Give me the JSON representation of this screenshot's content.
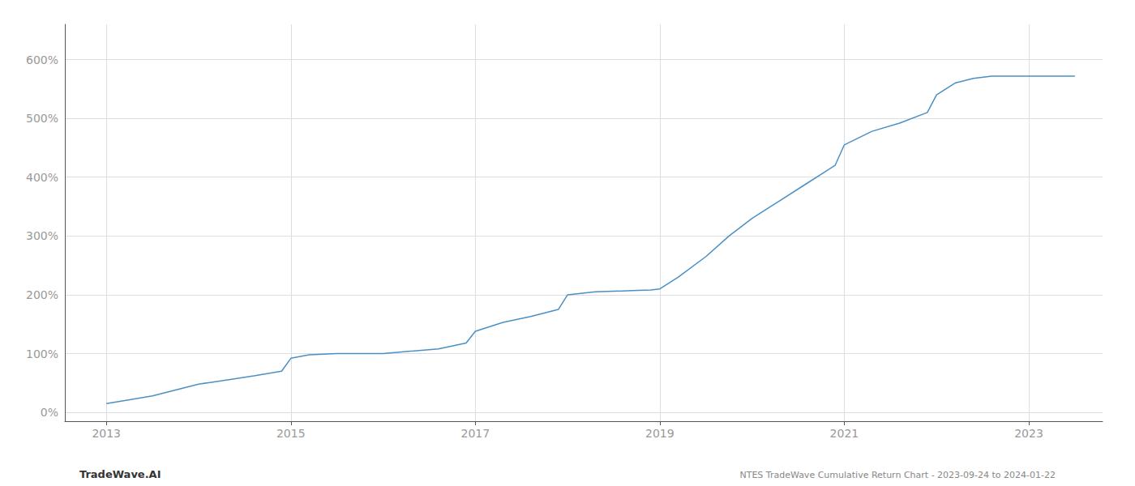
{
  "chart_data": {
    "type": "line",
    "x": [
      2013.0,
      2013.2,
      2013.5,
      2013.75,
      2014.0,
      2014.3,
      2014.6,
      2014.9,
      2015.0,
      2015.2,
      2015.5,
      2015.75,
      2016.0,
      2016.3,
      2016.6,
      2016.9,
      2017.0,
      2017.3,
      2017.6,
      2017.9,
      2018.0,
      2018.3,
      2018.5,
      2018.7,
      2018.9,
      2019.0,
      2019.2,
      2019.5,
      2019.75,
      2020.0,
      2020.3,
      2020.6,
      2020.9,
      2021.0,
      2021.3,
      2021.6,
      2021.9,
      2022.0,
      2022.2,
      2022.4,
      2022.6,
      2022.7,
      2023.0,
      2023.5
    ],
    "values": [
      15,
      20,
      28,
      38,
      48,
      55,
      62,
      70,
      92,
      98,
      100,
      100,
      100,
      104,
      108,
      118,
      138,
      153,
      163,
      175,
      200,
      205,
      206,
      207,
      208,
      210,
      230,
      265,
      300,
      330,
      360,
      390,
      420,
      455,
      478,
      492,
      510,
      540,
      560,
      568,
      572,
      572,
      572,
      572
    ],
    "color": "#4a90c4",
    "xlim": [
      2012.55,
      2023.8
    ],
    "xticks": [
      2013,
      2015,
      2017,
      2019,
      2021,
      2023
    ],
    "ylim": [
      -15,
      660
    ],
    "yticks": [
      {
        "value": 0,
        "label": "0%"
      },
      {
        "value": 100,
        "label": "100%"
      },
      {
        "value": 200,
        "label": "200%"
      },
      {
        "value": 300,
        "label": "300%"
      },
      {
        "value": 400,
        "label": "400%"
      },
      {
        "value": 500,
        "label": "500%"
      },
      {
        "value": 600,
        "label": "600%"
      }
    ],
    "grid": true,
    "annotations": [
      "TradeWave.AI",
      "NTES TradeWave Cumulative Return Chart - 2023-09-24 to 2024-01-22"
    ]
  }
}
